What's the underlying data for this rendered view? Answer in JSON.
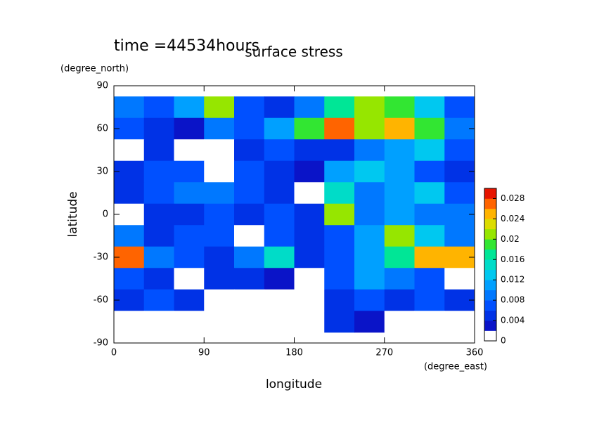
{
  "chart_data": {
    "type": "heatmap",
    "title": "surface stress",
    "subtitle": "time =44534hours",
    "x_label": "longitude",
    "x_unit": "(degree_east)",
    "y_label": "latitude",
    "y_unit": "(degree_north)",
    "x": [
      15,
      45,
      75,
      105,
      135,
      165,
      195,
      225,
      255,
      285,
      315,
      345
    ],
    "y": [
      75,
      60,
      45,
      30,
      15,
      0,
      -15,
      -30,
      -45,
      -60,
      -75
    ],
    "z": [
      [
        0.008,
        0.006,
        0.01,
        0.02,
        0.006,
        0.004,
        0.008,
        0.016,
        0.02,
        0.018,
        0.012,
        0.006
      ],
      [
        0.006,
        0.004,
        0.002,
        0.008,
        0.006,
        0.01,
        0.018,
        0.026,
        0.02,
        0.024,
        0.018,
        0.008
      ],
      [
        0,
        0.004,
        0,
        0,
        0.004,
        0.006,
        0.004,
        0.004,
        0.008,
        0.01,
        0.012,
        0.006
      ],
      [
        0.004,
        0.006,
        0.006,
        0,
        0.006,
        0.004,
        0.002,
        0.01,
        0.012,
        0.01,
        0.006,
        0.004
      ],
      [
        0.004,
        0.006,
        0.008,
        0.008,
        0.006,
        0.004,
        0,
        0.014,
        0.008,
        0.01,
        0.012,
        0.006
      ],
      [
        0,
        0.004,
        0.004,
        0.006,
        0.004,
        0.006,
        0.004,
        0.02,
        0.008,
        0.01,
        0.008,
        0.008
      ],
      [
        0.008,
        0.004,
        0.006,
        0.006,
        0,
        0.006,
        0.004,
        0.006,
        0.01,
        0.02,
        0.012,
        0.008
      ],
      [
        0.026,
        0.008,
        0.006,
        0.004,
        0.008,
        0.014,
        0.004,
        0.006,
        0.01,
        0.016,
        0.024,
        0.024
      ],
      [
        0.006,
        0.004,
        0,
        0.004,
        0.004,
        0.002,
        0,
        0.006,
        0.01,
        0.008,
        0.006,
        0
      ],
      [
        0.004,
        0.006,
        0.004,
        0,
        0,
        0,
        0,
        0.004,
        0.006,
        0.004,
        0.006,
        0.004
      ],
      [
        0,
        0,
        0,
        0,
        0,
        0,
        0,
        0.004,
        0.002,
        0,
        0,
        0
      ]
    ],
    "xlim": [
      0,
      360
    ],
    "xticks": [
      0,
      90,
      180,
      270,
      360
    ],
    "ylim": [
      -90,
      90
    ],
    "yticks": [
      -90,
      -60,
      -30,
      0,
      30,
      60,
      90
    ],
    "colorbar": {
      "levels": [
        0,
        0.002,
        0.004,
        0.006,
        0.008,
        0.01,
        0.012,
        0.014,
        0.016,
        0.018,
        0.02,
        0.022,
        0.024,
        0.026,
        0.028,
        0.03
      ],
      "colors": [
        "#ffffff",
        "#0a14c8",
        "#0032e6",
        "#0050ff",
        "#0078ff",
        "#00a0ff",
        "#00c8f0",
        "#00dcc8",
        "#00e696",
        "#32e632",
        "#96e600",
        "#dcdc00",
        "#ffb400",
        "#ff6400",
        "#e61400"
      ],
      "ticks": [
        0,
        0.004,
        0.008,
        0.012,
        0.016,
        0.02,
        0.024,
        0.028
      ]
    }
  }
}
